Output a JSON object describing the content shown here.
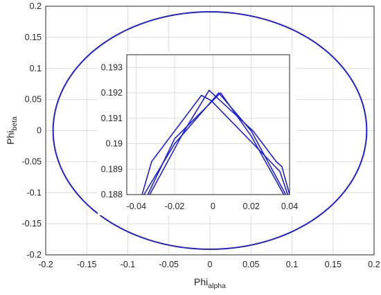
{
  "chart_data": [
    {
      "type": "line",
      "xlabel": "Phi",
      "xlabel_sub": "alpha",
      "ylabel": "Phi",
      "ylabel_sub": "beta",
      "xlim": [
        -0.2,
        0.2
      ],
      "ylim": [
        -0.2,
        0.2
      ],
      "xticks": [
        -0.2,
        -0.15,
        -0.1,
        -0.05,
        0,
        0.05,
        0.1,
        0.15,
        0.2
      ],
      "xtick_labels": [
        "-0.2",
        "-0.15",
        "-0.1",
        "-0.05",
        "0",
        "0.05",
        "0.1",
        "0.15",
        "0.2"
      ],
      "yticks": [
        -0.2,
        -0.15,
        -0.1,
        -0.05,
        0,
        0.05,
        0.1,
        0.15,
        0.2
      ],
      "ytick_labels": [
        "-0.2",
        "-0.15",
        "-0.1",
        "-0.05",
        "0",
        "0.05",
        "0.1",
        "0.15",
        "0.2"
      ],
      "grid": true,
      "series_color": "#1f1fd6",
      "curve": {
        "shape": "circle",
        "radius": 0.191,
        "center": [
          0,
          0
        ]
      }
    },
    {
      "type": "line",
      "role": "inset-zoom",
      "xlim": [
        -0.045,
        0.04
      ],
      "ylim": [
        0.188,
        0.1935
      ],
      "xticks": [
        -0.04,
        -0.02,
        0,
        0.02,
        0.04
      ],
      "xtick_labels": [
        "-0.04",
        "-0.02",
        "0",
        "0.02",
        "0.04"
      ],
      "yticks": [
        0.188,
        0.189,
        0.19,
        0.191,
        0.192,
        0.193
      ],
      "ytick_labels": [
        "0.188",
        "0.189",
        "0.19",
        "0.191",
        "0.192",
        "0.193"
      ],
      "grid": true,
      "series_color": "#1f1fd6",
      "series": [
        {
          "x": [
            -0.037,
            -0.032,
            -0.006,
            -0.001,
            0.03,
            0.035,
            0.039
          ],
          "y": [
            0.188,
            0.1893,
            0.1919,
            0.1917,
            0.1893,
            0.1889,
            0.188
          ]
        },
        {
          "x": [
            -0.036,
            -0.02,
            0.003,
            0.02,
            0.038
          ],
          "y": [
            0.188,
            0.19,
            0.192,
            0.1905,
            0.188
          ]
        },
        {
          "x": [
            -0.034,
            -0.02,
            0.004,
            0.02,
            0.037
          ],
          "y": [
            0.188,
            0.1902,
            0.192,
            0.1903,
            0.188
          ]
        },
        {
          "x": [
            -0.033,
            -0.015,
            -0.002,
            0.021,
            0.033,
            0.036,
            0.04
          ],
          "y": [
            0.188,
            0.1905,
            0.1921,
            0.1905,
            0.1893,
            0.1891,
            0.188
          ]
        }
      ]
    }
  ]
}
